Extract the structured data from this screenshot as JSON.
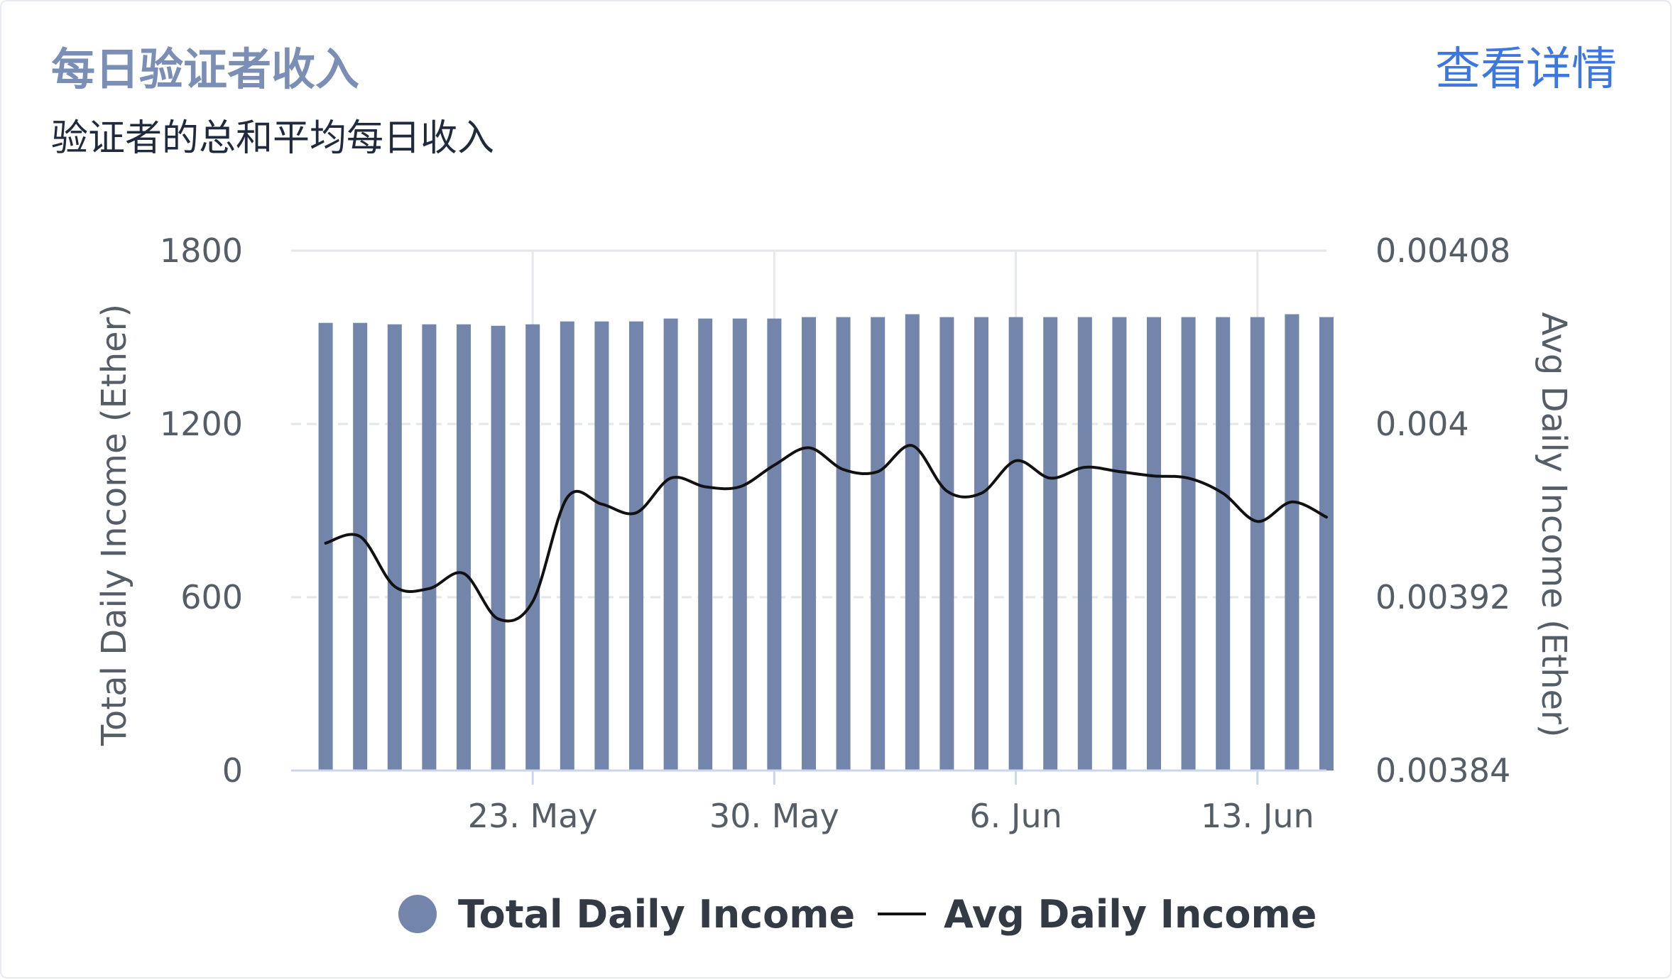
{
  "card": {
    "title": "每日验证者收入",
    "subtitle": "验证者的总和平均每日收入",
    "details_link": "查看详情"
  },
  "chart_data": {
    "type": "bar",
    "x_type": "date",
    "x": [
      "2021-05-17",
      "2021-05-18",
      "2021-05-19",
      "2021-05-20",
      "2021-05-21",
      "2021-05-22",
      "2021-05-23",
      "2021-05-24",
      "2021-05-25",
      "2021-05-26",
      "2021-05-27",
      "2021-05-28",
      "2021-05-29",
      "2021-05-30",
      "2021-05-31",
      "2021-06-01",
      "2021-06-02",
      "2021-06-03",
      "2021-06-04",
      "2021-06-05",
      "2021-06-06",
      "2021-06-07",
      "2021-06-08",
      "2021-06-09",
      "2021-06-10",
      "2021-06-11",
      "2021-06-12",
      "2021-06-13",
      "2021-06-14",
      "2021-06-15"
    ],
    "x_tick_labels": [
      {
        "date": "2021-05-23",
        "label": "23. May"
      },
      {
        "date": "2021-05-30",
        "label": "30. May"
      },
      {
        "date": "2021-06-06",
        "label": "6. Jun"
      },
      {
        "date": "2021-06-13",
        "label": "13. Jun"
      }
    ],
    "x_range": [
      "2021-05-16",
      "2021-06-15"
    ],
    "series": [
      {
        "name": "Total Daily Income",
        "type": "bar",
        "axis": "left",
        "color": "#7385aa",
        "values": [
          1550,
          1550,
          1545,
          1545,
          1545,
          1540,
          1545,
          1555,
          1555,
          1555,
          1565,
          1565,
          1565,
          1565,
          1570,
          1570,
          1570,
          1580,
          1570,
          1570,
          1570,
          1570,
          1570,
          1570,
          1570,
          1570,
          1570,
          1570,
          1580,
          1570
        ]
      },
      {
        "name": "Avg Daily Income",
        "type": "line",
        "axis": "right",
        "color": "#111111",
        "values": [
          0.003945,
          0.003948,
          0.003925,
          0.003924,
          0.003931,
          0.00391,
          0.003918,
          0.003966,
          0.003963,
          0.003959,
          0.003975,
          0.003971,
          0.003971,
          0.003981,
          0.003989,
          0.003979,
          0.003978,
          0.00399,
          0.003969,
          0.003968,
          0.003983,
          0.003975,
          0.00398,
          0.003978,
          0.003976,
          0.003975,
          0.003968,
          0.003955,
          0.003964,
          0.003957
        ]
      }
    ],
    "y_left": {
      "label": "Total Daily Income (Ether)",
      "range": [
        0,
        1800
      ],
      "ticks": [
        "1800",
        "1200",
        "600",
        "0"
      ],
      "tick_values": [
        1800,
        1200,
        600,
        0
      ]
    },
    "y_right": {
      "label": "Avg Daily Income (Ether)",
      "range": [
        0.00384,
        0.00408
      ],
      "ticks": [
        "0.00408",
        "0.004",
        "0.00392",
        "0.00384"
      ],
      "tick_values": [
        0.00408,
        0.004,
        0.00392,
        0.00384
      ]
    },
    "grid": true,
    "legend": {
      "position": "bottom-center",
      "items": [
        {
          "label": "Total Daily Income",
          "symbol": "circle",
          "color": "#7385aa"
        },
        {
          "label": "Avg Daily Income",
          "symbol": "line",
          "color": "#111111"
        }
      ]
    }
  }
}
